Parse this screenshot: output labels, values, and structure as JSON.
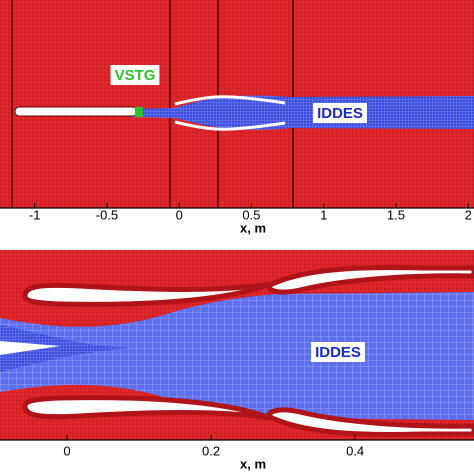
{
  "chart_data": [
    {
      "type": "mesh",
      "xlabel": "x, m",
      "xlim": [
        -1.24,
        2.04
      ],
      "xticks": [
        -1,
        -0.5,
        0,
        0.5,
        1,
        1.5,
        2
      ],
      "annotations": [
        "VSTG",
        "IDDES"
      ]
    },
    {
      "type": "mesh",
      "xlabel": "x, m",
      "xlim": [
        -0.093,
        0.565
      ],
      "xticks": [
        0,
        0.2,
        0.4
      ],
      "annotations": [
        "IDDES"
      ]
    }
  ]
}
